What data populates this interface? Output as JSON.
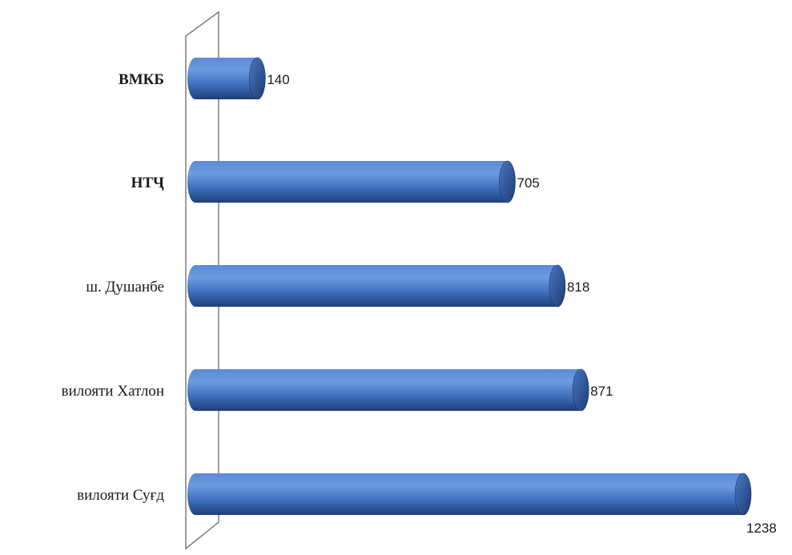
{
  "chart_data": {
    "type": "bar",
    "orientation": "horizontal",
    "style": "3d-cylinder",
    "categories": [
      "ВМКБ",
      "НТҶ",
      "ш. Душанбе",
      "вилояти Хатлон",
      "вилояти Суғд"
    ],
    "values": [
      140,
      705,
      818,
      871,
      1238
    ],
    "data_labels": [
      "140",
      "705",
      "818",
      "871",
      "1238"
    ],
    "bold_categories": [
      "ВМКБ",
      "НТҶ"
    ],
    "xlim": [
      0,
      1238
    ],
    "grid": false,
    "legend": "none",
    "colors": {
      "bar_light": "#6d9be0",
      "bar_main": "#3f6fbd",
      "bar_dark": "#1f3f78",
      "wall": "#7f7f7f"
    }
  }
}
